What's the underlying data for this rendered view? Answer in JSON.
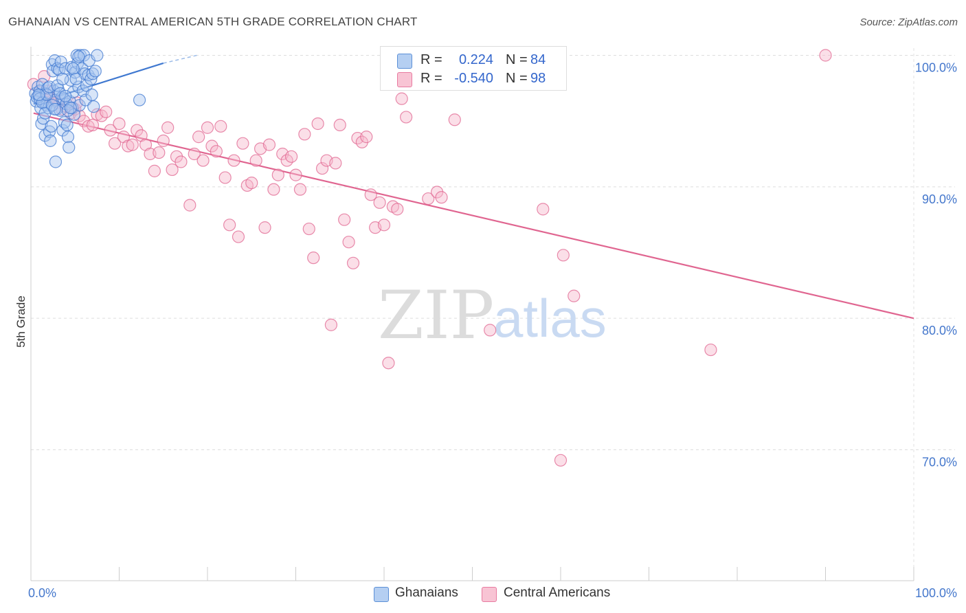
{
  "header": {
    "title": "GHANAIAN VS CENTRAL AMERICAN 5TH GRADE CORRELATION CHART",
    "source": "Source: ZipAtlas.com"
  },
  "legend": {
    "series": [
      {
        "name": "Ghanaians",
        "r_label": "R =",
        "r_value": "0.224",
        "n_label": "N =",
        "n_value": "84",
        "color": "#5b8fd6",
        "fill": "#a9c6f0"
      },
      {
        "name": "Central Americans",
        "r_label": "R =",
        "r_value": "-0.540",
        "n_label": "N =",
        "n_value": "98",
        "color": "#e87aa0",
        "fill": "#f6b8cc"
      }
    ]
  },
  "watermark": {
    "left": "ZIP",
    "right": "atlas"
  },
  "chart_data": {
    "type": "scatter",
    "title": "GHANAIAN VS CENTRAL AMERICAN 5TH GRADE CORRELATION CHART",
    "xlabel": "",
    "ylabel": "5th Grade",
    "xlim": [
      0,
      100
    ],
    "ylim": [
      60,
      102
    ],
    "x_tick_labels": [
      "0.0%",
      "100.0%"
    ],
    "y_ticks": [
      70,
      80,
      90,
      100
    ],
    "y_tick_labels": [
      "70.0%",
      "80.0%",
      "90.0%",
      "100.0%"
    ],
    "grid": true,
    "series": [
      {
        "name": "Ghanaians",
        "color": "#3f78d0",
        "fill": "#a9c6f0",
        "trend": {
          "x": [
            0.3,
            15.0
          ],
          "y": [
            96.3,
            99.4
          ],
          "dashed_to": [
            18.8,
            100.0
          ]
        },
        "points": [
          [
            0.5,
            97.1
          ],
          [
            0.6,
            96.5
          ],
          [
            0.8,
            97.6
          ],
          [
            0.9,
            96.9
          ],
          [
            1.0,
            97.3
          ],
          [
            1.1,
            96.0
          ],
          [
            1.2,
            94.8
          ],
          [
            1.3,
            97.8
          ],
          [
            1.4,
            95.2
          ],
          [
            1.5,
            96.4
          ],
          [
            1.6,
            93.9
          ],
          [
            1.7,
            97.1
          ],
          [
            1.8,
            96.2
          ],
          [
            1.9,
            97.5
          ],
          [
            2.0,
            96.0
          ],
          [
            2.1,
            94.2
          ],
          [
            2.2,
            93.5
          ],
          [
            2.3,
            94.6
          ],
          [
            2.4,
            99.3
          ],
          [
            2.5,
            98.8
          ],
          [
            2.6,
            97.3
          ],
          [
            2.7,
            99.6
          ],
          [
            2.8,
            96.6
          ],
          [
            2.9,
            95.9
          ],
          [
            3.0,
            99.0
          ],
          [
            3.1,
            97.4
          ],
          [
            3.2,
            98.9
          ],
          [
            3.3,
            95.8
          ],
          [
            3.4,
            99.5
          ],
          [
            3.5,
            96.8
          ],
          [
            3.6,
            94.3
          ],
          [
            3.7,
            96.7
          ],
          [
            3.8,
            94.9
          ],
          [
            3.9,
            99.0
          ],
          [
            4.0,
            96.3
          ],
          [
            4.1,
            94.7
          ],
          [
            4.2,
            93.8
          ],
          [
            4.3,
            93.0
          ],
          [
            4.4,
            96.5
          ],
          [
            4.5,
            98.1
          ],
          [
            4.6,
            99.1
          ],
          [
            4.7,
            96.0
          ],
          [
            4.8,
            97.2
          ],
          [
            4.9,
            95.5
          ],
          [
            5.0,
            98.7
          ],
          [
            5.2,
            100.0
          ],
          [
            5.3,
            99.4
          ],
          [
            5.4,
            97.6
          ],
          [
            5.5,
            96.2
          ],
          [
            5.6,
            100.0
          ],
          [
            5.8,
            99.0
          ],
          [
            5.9,
            97.3
          ],
          [
            6.0,
            100.0
          ],
          [
            6.1,
            98.6
          ],
          [
            6.2,
            96.6
          ],
          [
            6.3,
            97.7
          ],
          [
            6.5,
            98.5
          ],
          [
            6.6,
            99.6
          ],
          [
            6.8,
            98.2
          ],
          [
            6.9,
            97.0
          ],
          [
            7.0,
            98.6
          ],
          [
            7.1,
            96.1
          ],
          [
            0.7,
            96.8
          ],
          [
            1.0,
            96.7
          ],
          [
            1.3,
            96.4
          ],
          [
            1.6,
            95.6
          ],
          [
            1.8,
            97.0
          ],
          [
            2.1,
            97.6
          ],
          [
            2.4,
            96.2
          ],
          [
            2.7,
            95.9
          ],
          [
            3.0,
            97.7
          ],
          [
            3.3,
            97.1
          ],
          [
            3.6,
            98.2
          ],
          [
            3.9,
            96.9
          ],
          [
            4.2,
            95.8
          ],
          [
            4.5,
            96.0
          ],
          [
            4.8,
            99.0
          ],
          [
            5.1,
            98.2
          ],
          [
            5.4,
            99.9
          ],
          [
            7.5,
            100.0
          ],
          [
            7.3,
            98.8
          ],
          [
            12.3,
            96.6
          ],
          [
            2.8,
            91.9
          ],
          [
            0.9,
            97.0
          ]
        ]
      },
      {
        "name": "Central Americans",
        "color": "#e06590",
        "fill": "#f6b8cc",
        "trend": {
          "x": [
            0.3,
            100.0
          ],
          "y": [
            95.6,
            80.0
          ]
        },
        "points": [
          [
            0.3,
            97.8
          ],
          [
            1.0,
            97.2
          ],
          [
            1.5,
            98.4
          ],
          [
            2.0,
            97.3
          ],
          [
            2.5,
            96.6
          ],
          [
            3.0,
            96.4
          ],
          [
            3.5,
            95.9
          ],
          [
            4.0,
            96.1
          ],
          [
            4.5,
            95.6
          ],
          [
            5.0,
            95.9
          ],
          [
            5.5,
            95.4
          ],
          [
            6.0,
            95.0
          ],
          [
            6.5,
            94.6
          ],
          [
            7.0,
            94.7
          ],
          [
            7.5,
            95.5
          ],
          [
            8.0,
            95.4
          ],
          [
            8.5,
            95.7
          ],
          [
            9.0,
            94.3
          ],
          [
            9.5,
            93.3
          ],
          [
            10.0,
            94.8
          ],
          [
            10.5,
            93.8
          ],
          [
            11.0,
            93.1
          ],
          [
            11.5,
            93.2
          ],
          [
            12.0,
            94.3
          ],
          [
            12.5,
            93.9
          ],
          [
            13.0,
            93.2
          ],
          [
            13.5,
            92.5
          ],
          [
            14.0,
            91.2
          ],
          [
            14.5,
            92.6
          ],
          [
            15.0,
            93.5
          ],
          [
            15.5,
            94.5
          ],
          [
            16.0,
            91.3
          ],
          [
            16.5,
            92.3
          ],
          [
            17.0,
            91.9
          ],
          [
            18.0,
            88.6
          ],
          [
            18.5,
            92.5
          ],
          [
            19.0,
            93.8
          ],
          [
            19.5,
            92.0
          ],
          [
            20.0,
            94.5
          ],
          [
            20.5,
            93.1
          ],
          [
            21.0,
            92.7
          ],
          [
            21.5,
            94.6
          ],
          [
            22.0,
            90.7
          ],
          [
            22.5,
            87.1
          ],
          [
            23.0,
            92.0
          ],
          [
            23.5,
            86.2
          ],
          [
            24.0,
            93.3
          ],
          [
            24.5,
            90.1
          ],
          [
            25.0,
            90.3
          ],
          [
            25.5,
            92.0
          ],
          [
            26.0,
            92.9
          ],
          [
            26.5,
            86.9
          ],
          [
            27.0,
            93.2
          ],
          [
            27.5,
            89.8
          ],
          [
            28.0,
            90.9
          ],
          [
            28.5,
            92.5
          ],
          [
            29.0,
            92.0
          ],
          [
            29.5,
            92.3
          ],
          [
            30.0,
            90.9
          ],
          [
            30.5,
            89.8
          ],
          [
            31.0,
            94.0
          ],
          [
            31.5,
            86.8
          ],
          [
            32.0,
            84.6
          ],
          [
            32.5,
            94.8
          ],
          [
            33.0,
            91.4
          ],
          [
            33.5,
            92.0
          ],
          [
            34.0,
            79.5
          ],
          [
            34.5,
            91.8
          ],
          [
            35.0,
            94.7
          ],
          [
            35.5,
            87.5
          ],
          [
            36.0,
            85.8
          ],
          [
            36.5,
            84.2
          ],
          [
            37.0,
            93.7
          ],
          [
            37.5,
            93.4
          ],
          [
            38.0,
            93.8
          ],
          [
            38.5,
            89.4
          ],
          [
            39.0,
            86.9
          ],
          [
            39.5,
            88.8
          ],
          [
            40.0,
            87.1
          ],
          [
            40.5,
            76.6
          ],
          [
            41.0,
            88.5
          ],
          [
            41.5,
            88.3
          ],
          [
            42.0,
            96.7
          ],
          [
            42.5,
            95.3
          ],
          [
            45.0,
            89.1
          ],
          [
            46.0,
            89.6
          ],
          [
            46.5,
            89.2
          ],
          [
            48.0,
            95.1
          ],
          [
            52.0,
            79.1
          ],
          [
            58.0,
            88.3
          ],
          [
            60.0,
            69.2
          ],
          [
            60.3,
            84.8
          ],
          [
            61.5,
            81.7
          ],
          [
            77.0,
            77.6
          ],
          [
            90.0,
            100.0
          ],
          [
            1.8,
            97.0
          ],
          [
            2.2,
            96.8
          ],
          [
            5.2,
            96.4
          ]
        ]
      }
    ]
  }
}
